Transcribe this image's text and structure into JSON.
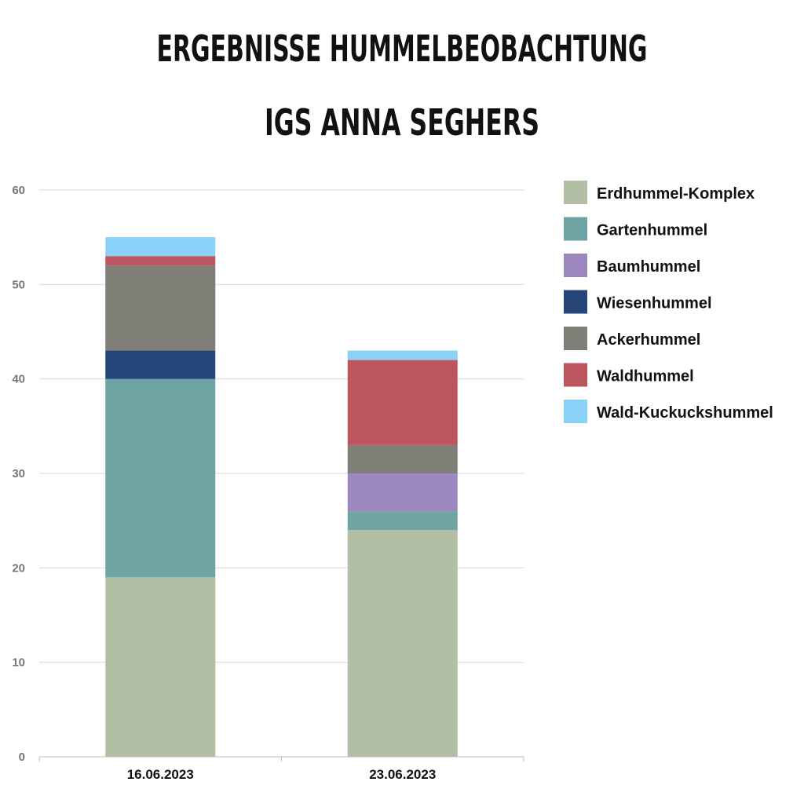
{
  "chart_data": {
    "type": "bar",
    "stacked": true,
    "title_lines": [
      "ERGEBNISSE HUMMELBEOBACHTUNG",
      "IGS ANNA SEGHERS"
    ],
    "categories": [
      "16.06.2023",
      "23.06.2023"
    ],
    "ylim": [
      0,
      60
    ],
    "yticks": [
      0,
      10,
      20,
      30,
      40,
      50,
      60
    ],
    "grid": true,
    "legend_position": "right",
    "series": [
      {
        "name": "Erdhummel-Komplex",
        "color": "#b3bfa4",
        "values": [
          19,
          24
        ]
      },
      {
        "name": "Gartenhummel",
        "color": "#6ea5a4",
        "values": [
          21,
          2
        ]
      },
      {
        "name": "Baumhummel",
        "color": "#9d87bf",
        "values": [
          0,
          4
        ]
      },
      {
        "name": "Wiesenhummel",
        "color": "#26467a",
        "values": [
          3,
          0
        ]
      },
      {
        "name": "Ackerhummel",
        "color": "#7f7f77",
        "values": [
          9,
          3
        ]
      },
      {
        "name": "Waldhummel",
        "color": "#bc555e",
        "values": [
          1,
          9
        ]
      },
      {
        "name": "Wald-Kuckuckshummel",
        "color": "#89d1f6",
        "values": [
          2,
          1
        ]
      }
    ]
  }
}
